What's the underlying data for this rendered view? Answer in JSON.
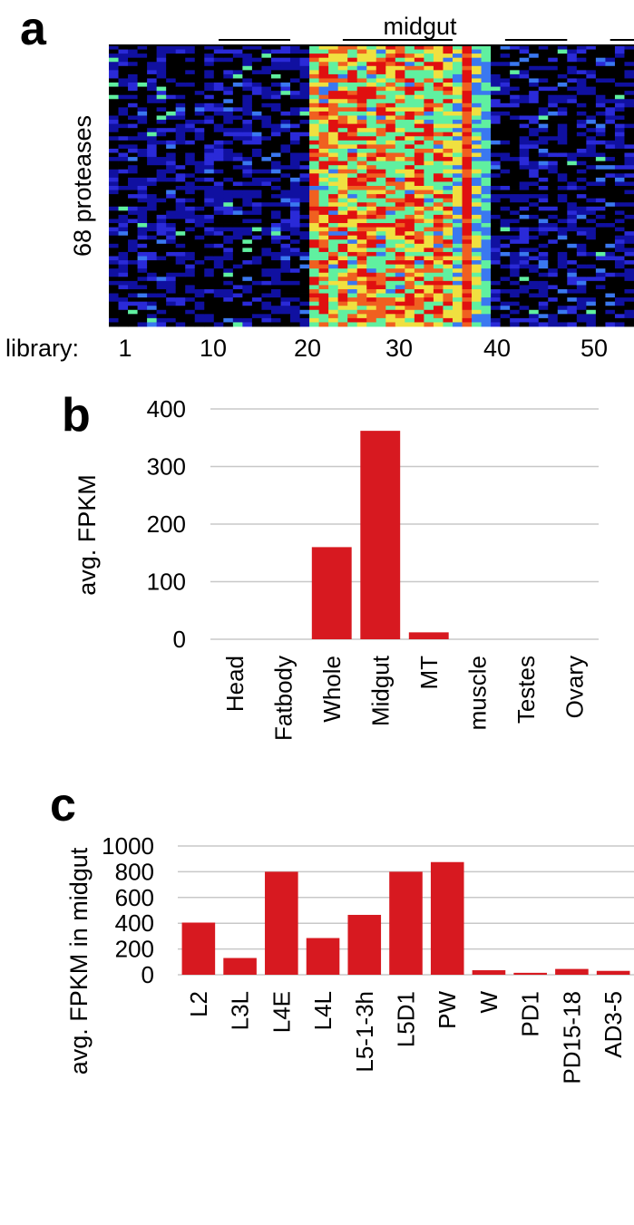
{
  "panels": {
    "a": {
      "label": "a"
    },
    "b": {
      "label": "b"
    },
    "c": {
      "label": "c"
    }
  },
  "chart_data": [
    {
      "type": "heatmap",
      "panel": "a",
      "ylabel": "68 proteases",
      "x_prefix": "library:",
      "x_ticks": [
        1,
        10,
        20,
        30,
        40,
        50
      ],
      "group_labels": [
        "midgut"
      ],
      "rows": 68,
      "columns": 55,
      "colormap": [
        "#000000",
        "#1010a0",
        "#2a2ad8",
        "#3a78f0",
        "#60f0a0",
        "#f0e040",
        "#f06020",
        "#e01010"
      ]
    },
    {
      "type": "bar",
      "panel": "b",
      "ylabel": "avg. FPKM",
      "categories": [
        "Head",
        "Fatbody",
        "Whole",
        "Midgut",
        "MT",
        "muscle",
        "Testes",
        "Ovary"
      ],
      "values": [
        0,
        0,
        160,
        362,
        12,
        0,
        0,
        0
      ],
      "yticks": [
        0,
        100,
        200,
        300,
        400
      ],
      "ylim": [
        0,
        400
      ],
      "bar_color": "#d71920",
      "grid": true
    },
    {
      "type": "bar",
      "panel": "c",
      "ylabel": "avg. FPKM in midgut",
      "categories": [
        "L2",
        "L3L",
        "L4E",
        "L4L",
        "L5-1-3h",
        "L5D1",
        "PW",
        "W",
        "PD1",
        "PD15-18",
        "AD3-5"
      ],
      "values": [
        405,
        130,
        800,
        285,
        465,
        800,
        875,
        35,
        15,
        45,
        30
      ],
      "yticks": [
        0,
        200,
        400,
        600,
        800,
        1000
      ],
      "ylim": [
        0,
        1000
      ],
      "bar_color": "#d71920",
      "grid": true
    }
  ]
}
